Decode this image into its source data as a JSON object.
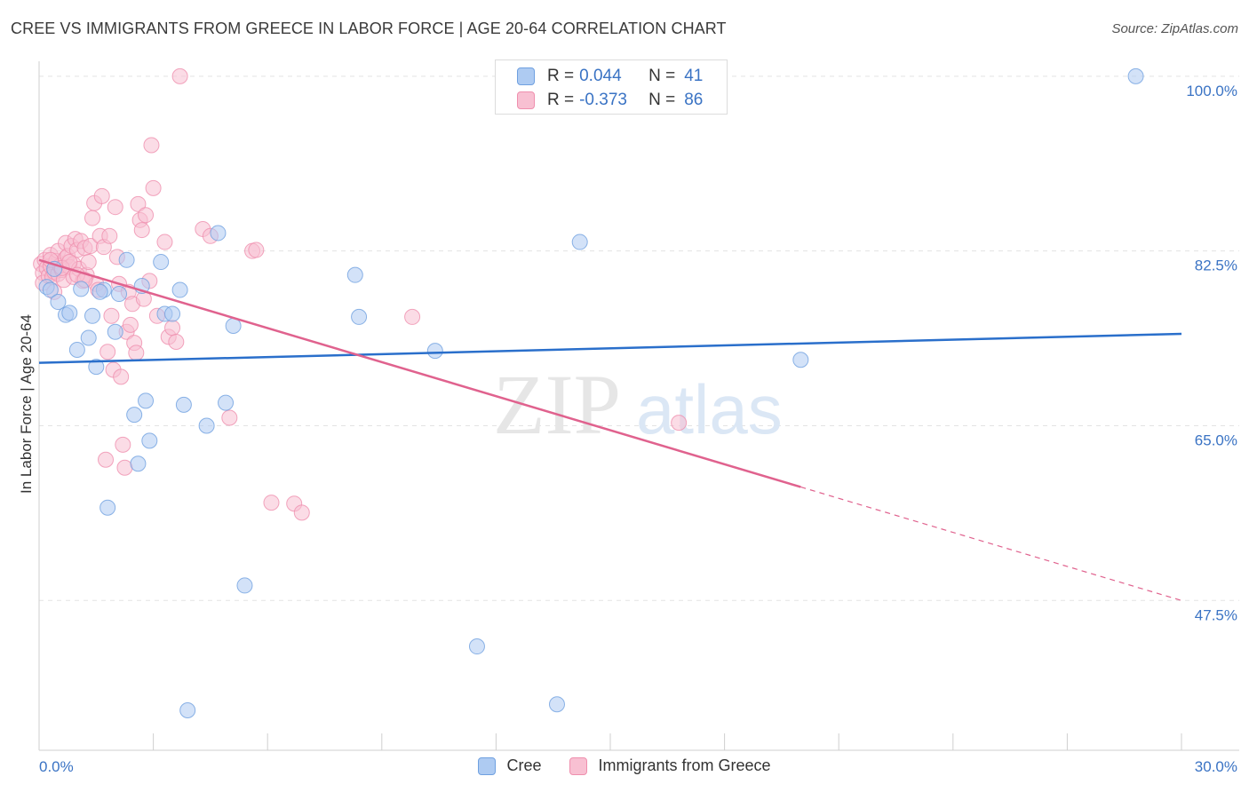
{
  "title": "CREE VS IMMIGRANTS FROM GREECE IN LABOR FORCE | AGE 20-64 CORRELATION CHART",
  "source": "Source: ZipAtlas.com",
  "watermark": {
    "zip": "ZIP",
    "atlas": "atlas"
  },
  "colors": {
    "cree": "#6fa0e0",
    "cree_fill": "#aecbf2",
    "cree_line": "#2a6fcb",
    "greece": "#ef8fae",
    "greece_fill": "#f8c0d2",
    "greece_line": "#e0628e",
    "tick_label": "#3a73c4",
    "grid": "#e3e3e3"
  },
  "legend": {
    "rows": [
      {
        "r_label": "R =",
        "r_value": "0.044",
        "n_label": "N =",
        "n_value": "41"
      },
      {
        "r_label": "R =",
        "r_value": "-0.373",
        "n_label": "N =",
        "n_value": "86"
      }
    ]
  },
  "bottom_legend": [
    "Cree",
    "Immigrants from Greece"
  ],
  "chart_data": {
    "type": "scatter",
    "title": "CREE VS IMMIGRANTS FROM GREECE IN LABOR FORCE | AGE 20-64 CORRELATION CHART",
    "xlabel": "",
    "ylabel": "In Labor Force | Age 20-64",
    "xlim": [
      0,
      30
    ],
    "ylim": [
      32.5,
      101.5
    ],
    "x_tick_labels": [
      "0.0%",
      "30.0%"
    ],
    "y_ticks": [
      100.0,
      82.5,
      65.0,
      47.5
    ],
    "y_tick_labels": [
      "100.0%",
      "82.5%",
      "65.0%",
      "47.5%"
    ],
    "grid": true,
    "legend_position": "top-center",
    "series": [
      {
        "name": "Cree",
        "r": 0.044,
        "n": 41,
        "trend": {
          "x": [
            0,
            30
          ],
          "y": [
            71.3,
            74.2
          ],
          "dashed_from": null
        },
        "points": [
          [
            0.2,
            78.9
          ],
          [
            0.3,
            78.6
          ],
          [
            0.5,
            77.4
          ],
          [
            0.7,
            76.1
          ],
          [
            0.8,
            76.3
          ],
          [
            1.0,
            72.6
          ],
          [
            1.1,
            78.7
          ],
          [
            1.3,
            73.8
          ],
          [
            1.4,
            76.0
          ],
          [
            1.5,
            70.9
          ],
          [
            1.7,
            78.6
          ],
          [
            1.8,
            56.8
          ],
          [
            2.0,
            74.4
          ],
          [
            2.1,
            78.2
          ],
          [
            2.3,
            81.6
          ],
          [
            2.5,
            66.1
          ],
          [
            2.6,
            61.2
          ],
          [
            2.7,
            79.0
          ],
          [
            2.8,
            67.5
          ],
          [
            2.9,
            63.5
          ],
          [
            3.2,
            81.4
          ],
          [
            3.3,
            76.2
          ],
          [
            3.5,
            76.2
          ],
          [
            3.7,
            78.6
          ],
          [
            3.8,
            67.1
          ],
          [
            3.9,
            36.5
          ],
          [
            4.4,
            65.0
          ],
          [
            4.7,
            84.3
          ],
          [
            4.9,
            67.3
          ],
          [
            5.1,
            75.0
          ],
          [
            5.4,
            49.0
          ],
          [
            8.3,
            80.1
          ],
          [
            8.4,
            75.9
          ],
          [
            10.4,
            72.5
          ],
          [
            11.5,
            42.9
          ],
          [
            13.6,
            37.1
          ],
          [
            14.2,
            83.4
          ],
          [
            20.0,
            71.6
          ],
          [
            28.8,
            100.0
          ],
          [
            1.6,
            78.4
          ],
          [
            0.4,
            80.7
          ]
        ]
      },
      {
        "name": "Immigrants from Greece",
        "r": -0.373,
        "n": 86,
        "trend": {
          "x": [
            0,
            30
          ],
          "y": [
            81.6,
            47.5
          ],
          "dashed_from": 20.0
        },
        "points": [
          [
            0.05,
            81.2
          ],
          [
            0.1,
            80.3
          ],
          [
            0.1,
            79.3
          ],
          [
            0.15,
            81.6
          ],
          [
            0.2,
            80.8
          ],
          [
            0.25,
            80.0
          ],
          [
            0.3,
            81.0
          ],
          [
            0.3,
            82.1
          ],
          [
            0.35,
            79.9
          ],
          [
            0.4,
            80.4
          ],
          [
            0.45,
            81.5
          ],
          [
            0.5,
            80.2
          ],
          [
            0.5,
            82.5
          ],
          [
            0.55,
            81.0
          ],
          [
            0.6,
            80.6
          ],
          [
            0.65,
            79.6
          ],
          [
            0.7,
            81.8
          ],
          [
            0.7,
            83.3
          ],
          [
            0.75,
            82.0
          ],
          [
            0.8,
            80.9
          ],
          [
            0.85,
            83.0
          ],
          [
            0.9,
            81.2
          ],
          [
            0.9,
            79.9
          ],
          [
            0.95,
            83.7
          ],
          [
            1.0,
            82.6
          ],
          [
            1.05,
            80.7
          ],
          [
            1.1,
            83.5
          ],
          [
            1.15,
            79.5
          ],
          [
            1.2,
            82.8
          ],
          [
            1.25,
            80.1
          ],
          [
            1.3,
            81.4
          ],
          [
            1.35,
            83.0
          ],
          [
            1.4,
            85.8
          ],
          [
            1.45,
            87.3
          ],
          [
            1.5,
            79.2
          ],
          [
            1.55,
            78.6
          ],
          [
            1.6,
            84.0
          ],
          [
            1.65,
            88.0
          ],
          [
            1.7,
            82.9
          ],
          [
            1.75,
            61.6
          ],
          [
            1.8,
            72.4
          ],
          [
            1.85,
            84.0
          ],
          [
            1.9,
            76.0
          ],
          [
            1.95,
            70.6
          ],
          [
            2.0,
            86.9
          ],
          [
            2.05,
            81.9
          ],
          [
            2.1,
            79.2
          ],
          [
            2.15,
            69.9
          ],
          [
            2.2,
            63.1
          ],
          [
            2.25,
            60.8
          ],
          [
            2.3,
            74.4
          ],
          [
            2.35,
            78.4
          ],
          [
            2.4,
            75.1
          ],
          [
            2.45,
            77.2
          ],
          [
            2.5,
            73.3
          ],
          [
            2.55,
            72.3
          ],
          [
            2.6,
            87.2
          ],
          [
            2.65,
            85.6
          ],
          [
            2.7,
            84.6
          ],
          [
            2.75,
            77.7
          ],
          [
            2.8,
            86.1
          ],
          [
            2.9,
            79.5
          ],
          [
            2.95,
            93.1
          ],
          [
            3.0,
            88.8
          ],
          [
            3.1,
            76.0
          ],
          [
            3.3,
            83.4
          ],
          [
            3.4,
            73.9
          ],
          [
            3.5,
            74.8
          ],
          [
            3.6,
            73.4
          ],
          [
            3.7,
            100.0
          ],
          [
            4.3,
            84.7
          ],
          [
            4.5,
            84.0
          ],
          [
            5.0,
            65.8
          ],
          [
            5.6,
            82.5
          ],
          [
            5.7,
            82.6
          ],
          [
            6.1,
            57.3
          ],
          [
            6.7,
            57.2
          ],
          [
            6.9,
            56.3
          ],
          [
            9.8,
            75.9
          ],
          [
            16.8,
            65.3
          ],
          [
            0.4,
            78.4
          ],
          [
            0.6,
            80.8
          ],
          [
            1.0,
            80.1
          ],
          [
            1.2,
            79.6
          ],
          [
            0.3,
            81.6
          ],
          [
            0.8,
            81.4
          ]
        ]
      }
    ]
  }
}
